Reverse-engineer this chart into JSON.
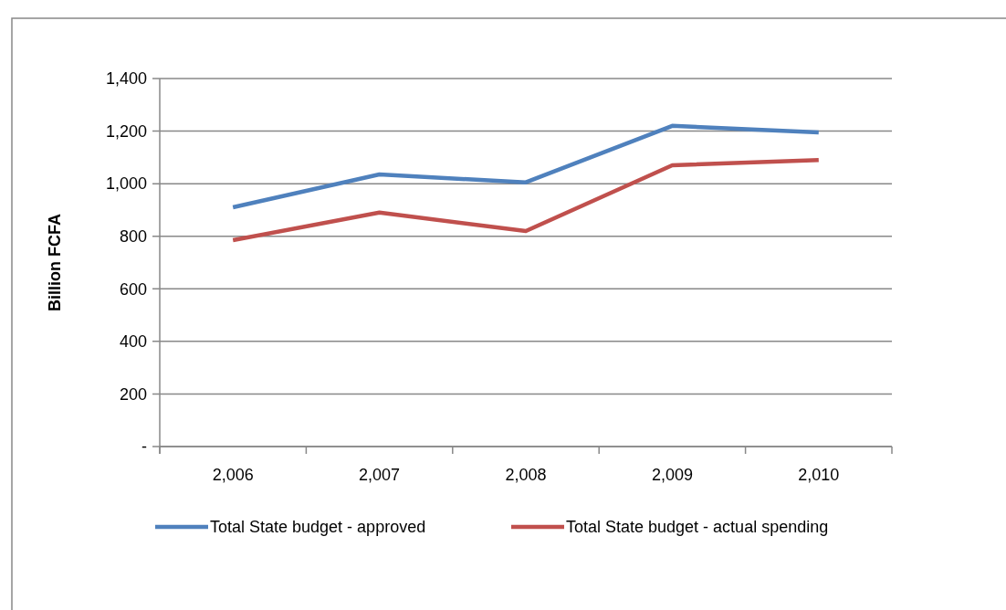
{
  "chart_data": {
    "type": "line",
    "ylabel": "Billion FCFA",
    "categories": [
      "2,006",
      "2,007",
      "2,008",
      "2,009",
      "2,010"
    ],
    "series": [
      {
        "name": "Total State  budget - approved",
        "color": "#4f81bd",
        "values": [
          910,
          1035,
          1005,
          1220,
          1195
        ]
      },
      {
        "name": "Total State  budget - actual spending",
        "color": "#c0504d",
        "values": [
          785,
          890,
          820,
          1070,
          1090
        ]
      }
    ],
    "ylim": [
      0,
      1400
    ],
    "yticks": [
      {
        "value": 0,
        "label": "-"
      },
      200,
      400,
      600,
      800,
      "1,000",
      "1,200",
      "1,400"
    ],
    "grid": "y",
    "legend": "bottom",
    "marker": "none",
    "line_style": "solid"
  }
}
